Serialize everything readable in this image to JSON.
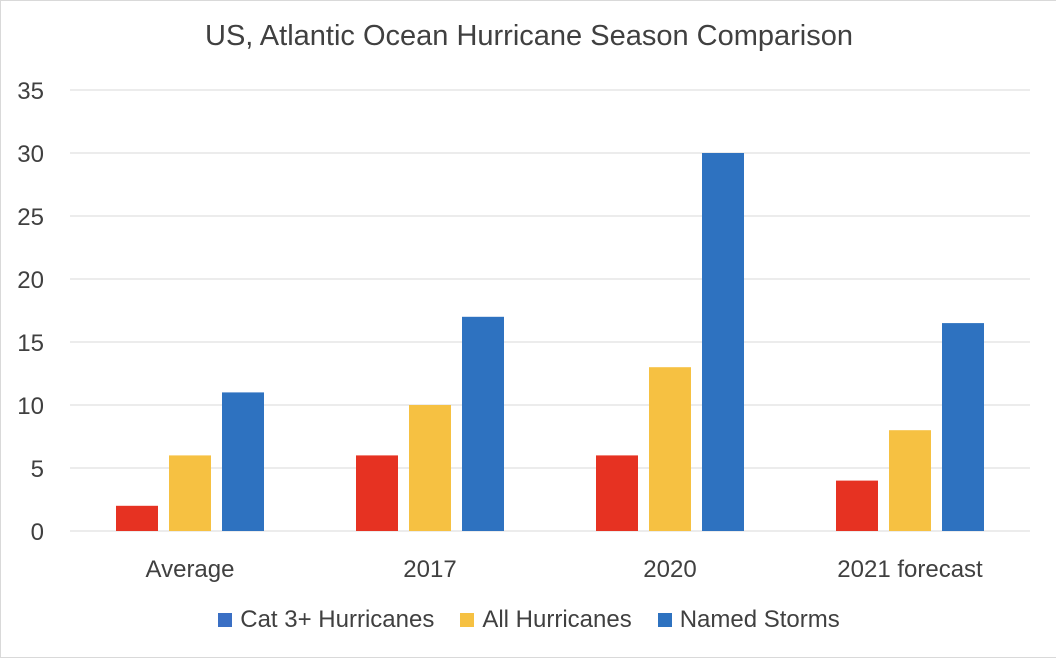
{
  "chart_data": {
    "type": "bar",
    "title": "US, Atlantic Ocean Hurricane Season Comparison",
    "categories": [
      "Average",
      "2017",
      "2020",
      "2021 forecast"
    ],
    "series": [
      {
        "name": "Cat 3+ Hurricanes",
        "values": [
          2,
          6,
          6,
          4
        ],
        "color": "#e63222",
        "legend_color": "#3a6fc4"
      },
      {
        "name": "All Hurricanes",
        "values": [
          6,
          10,
          13,
          8
        ],
        "color": "#f6c142",
        "legend_color": "#f6c142"
      },
      {
        "name": "Named Storms",
        "values": [
          11,
          17,
          30,
          16.5
        ],
        "color": "#2e72c0",
        "legend_color": "#2e72c0"
      }
    ],
    "ylim": [
      0,
      35
    ],
    "yticks": [
      "0",
      "5",
      "10",
      "15",
      "20",
      "25",
      "30",
      "35"
    ],
    "grid": true,
    "legend": "bottom"
  }
}
